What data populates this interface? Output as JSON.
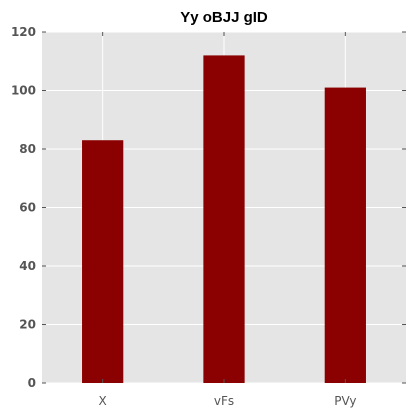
{
  "chart_data": {
    "type": "bar",
    "title": "Yy  oBJJ gID",
    "xlabel": "",
    "ylabel": "",
    "categories": [
      "X",
      "vFs",
      "PVy"
    ],
    "values": [
      83,
      112,
      101
    ],
    "ylim": [
      0,
      120
    ],
    "yticks": [
      0,
      20,
      40,
      60,
      80,
      100,
      120
    ],
    "grid": true,
    "legend": "none",
    "colors": {
      "bar": "#8b0000",
      "plot_background": "#e5e5e5",
      "grid": "#ffffff",
      "tick": "#555555"
    }
  }
}
